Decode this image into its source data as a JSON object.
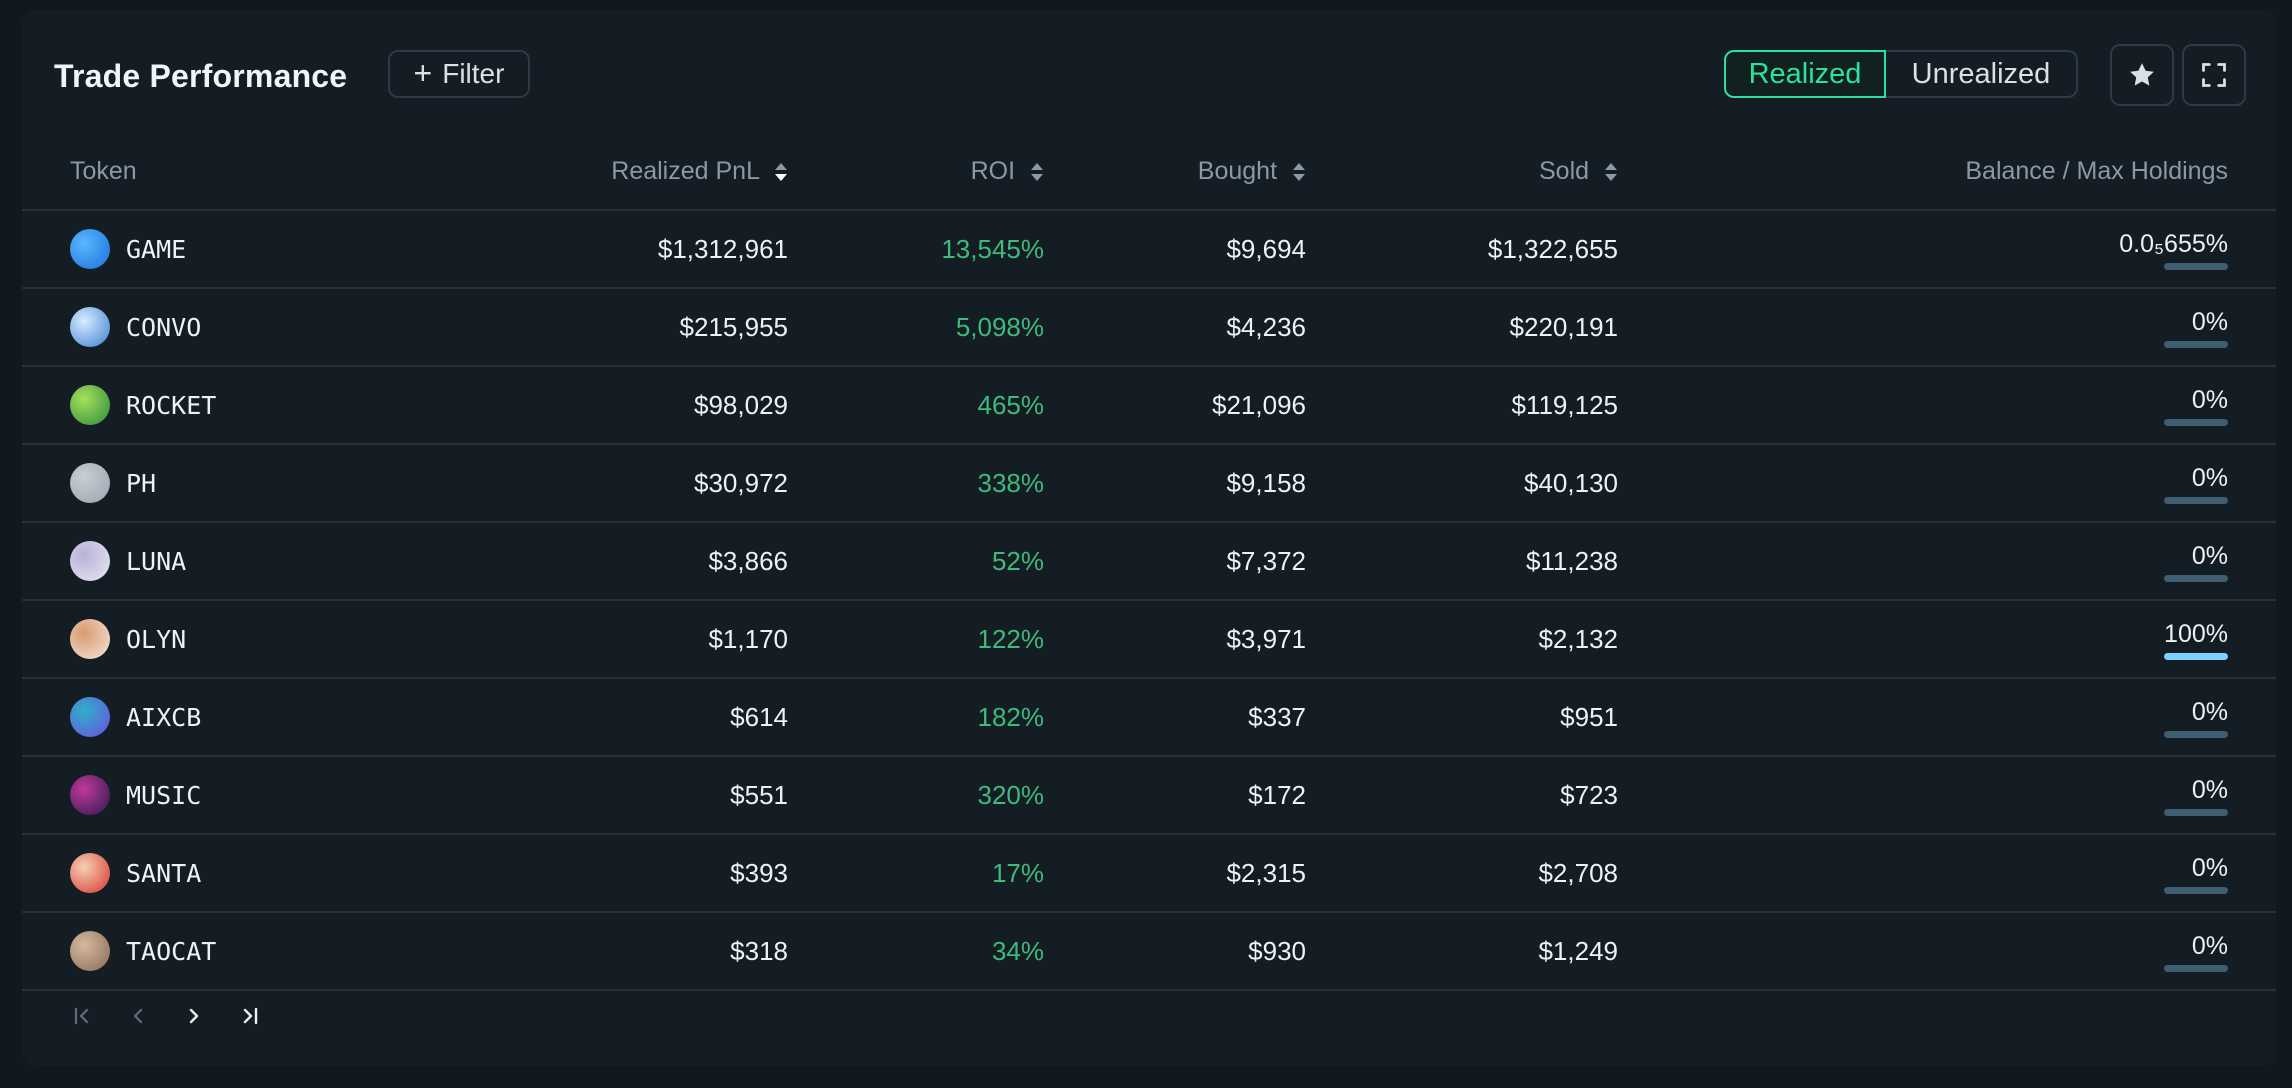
{
  "header": {
    "title": "Trade Performance",
    "filter_label": "Filter",
    "toggle": {
      "realized": "Realized",
      "unrealized": "Unrealized",
      "active": "Realized"
    },
    "star_icon": "star-icon",
    "fullscreen_icon": "fullscreen-icon"
  },
  "columns": {
    "token": "Token",
    "pnl": "Realized PnL",
    "roi": "ROI",
    "bought": "Bought",
    "sold": "Sold",
    "balance": "Balance / Max Holdings"
  },
  "colors": {
    "accent": "#2ee0a0",
    "roi_green": "#3dbb7c",
    "bar_track": "#3f5e72",
    "bar_fill": "#7fd1ff"
  },
  "rows": [
    {
      "token": "GAME",
      "avatar": [
        "#1b6fd8",
        "#5ab8ff"
      ],
      "pnl": "$1,312,961",
      "roi": "13,545%",
      "bought": "$9,694",
      "sold": "$1,322,655",
      "balance": "0.0₅655%",
      "balance_pct": 0
    },
    {
      "token": "CONVO",
      "avatar": [
        "#3a7fd0",
        "#d7ecff"
      ],
      "pnl": "$215,955",
      "roi": "5,098%",
      "bought": "$4,236",
      "sold": "$220,191",
      "balance": "0%",
      "balance_pct": 0
    },
    {
      "token": "ROCKET",
      "avatar": [
        "#2b8a3a",
        "#a6e05a"
      ],
      "pnl": "$98,029",
      "roi": "465%",
      "bought": "$21,096",
      "sold": "$119,125",
      "balance": "0%",
      "balance_pct": 0
    },
    {
      "token": "PH",
      "avatar": [
        "#9aa3ad",
        "#c8ced5"
      ],
      "pnl": "$30,972",
      "roi": "338%",
      "bought": "$9,158",
      "sold": "$40,130",
      "balance": "0%",
      "balance_pct": 0
    },
    {
      "token": "LUNA",
      "avatar": [
        "#e9e8f5",
        "#b7b2d8"
      ],
      "pnl": "$3,866",
      "roi": "52%",
      "bought": "$7,372",
      "sold": "$11,238",
      "balance": "0%",
      "balance_pct": 0
    },
    {
      "token": "OLYN",
      "avatar": [
        "#f6e6dc",
        "#d99a70"
      ],
      "pnl": "$1,170",
      "roi": "122%",
      "bought": "$3,971",
      "sold": "$2,132",
      "balance": "100%",
      "balance_pct": 100
    },
    {
      "token": "AIXCB",
      "avatar": [
        "#6a4ee0",
        "#2fb0c8"
      ],
      "pnl": "$614",
      "roi": "182%",
      "bought": "$337",
      "sold": "$951",
      "balance": "0%",
      "balance_pct": 0
    },
    {
      "token": "MUSIC",
      "avatar": [
        "#2b1850",
        "#c03a9a"
      ],
      "pnl": "$551",
      "roi": "320%",
      "bought": "$172",
      "sold": "$723",
      "balance": "0%",
      "balance_pct": 0
    },
    {
      "token": "SANTA",
      "avatar": [
        "#d8332f",
        "#f3d1b4"
      ],
      "pnl": "$393",
      "roi": "17%",
      "bought": "$2,315",
      "sold": "$2,708",
      "balance": "0%",
      "balance_pct": 0
    },
    {
      "token": "TAOCAT",
      "avatar": [
        "#8a6a55",
        "#d4b9a0"
      ],
      "pnl": "$318",
      "roi": "34%",
      "bought": "$930",
      "sold": "$1,249",
      "balance": "0%",
      "balance_pct": 0
    }
  ],
  "pagination": {
    "first": "first-page-icon",
    "prev": "prev-page-icon",
    "next": "next-page-icon",
    "last": "last-page-icon"
  }
}
